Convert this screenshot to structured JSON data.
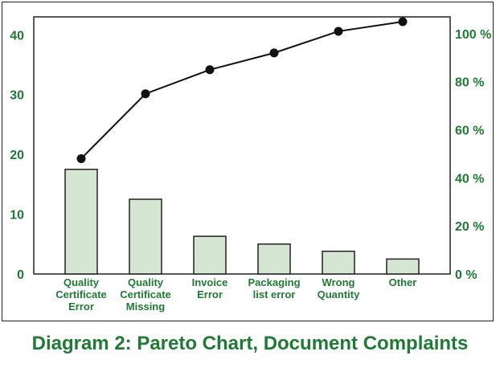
{
  "caption": "Diagram 2: Pareto Chart, Document Complaints",
  "colors": {
    "text_green": "#1f7a34",
    "bar_fill": "#d5e6d3",
    "bar_stroke": "#222222",
    "line": "#111111"
  },
  "chart_data": {
    "type": "bar",
    "title": "",
    "xlabel": "",
    "ylabel": "",
    "categories": [
      [
        "Quality",
        "Certificate",
        "Error"
      ],
      [
        "Quality",
        "Certificate",
        "Missing"
      ],
      [
        "Invoice",
        "Error"
      ],
      [
        "Packaging",
        "list error"
      ],
      [
        "Wrong",
        "Quantity"
      ],
      [
        "Other"
      ]
    ],
    "series": [
      {
        "type": "bar",
        "axis": "left",
        "values": [
          17.5,
          12.5,
          6.3,
          5.0,
          3.8,
          2.5
        ]
      },
      {
        "type": "line",
        "axis": "right",
        "values": [
          48,
          75,
          85,
          92,
          101,
          105
        ]
      }
    ],
    "y_left": {
      "range": [
        0,
        43
      ],
      "ticks": [
        0,
        10,
        20,
        30,
        40
      ],
      "labels": [
        "0",
        "10",
        "20",
        "30",
        "40"
      ]
    },
    "y_right": {
      "range": [
        0,
        107
      ],
      "ticks": [
        0,
        20,
        40,
        60,
        80,
        100
      ],
      "labels": [
        "0 %",
        "20 %",
        "40 %",
        "60 %",
        "80 %",
        "100 %"
      ]
    },
    "grid": false,
    "legend": "none"
  }
}
